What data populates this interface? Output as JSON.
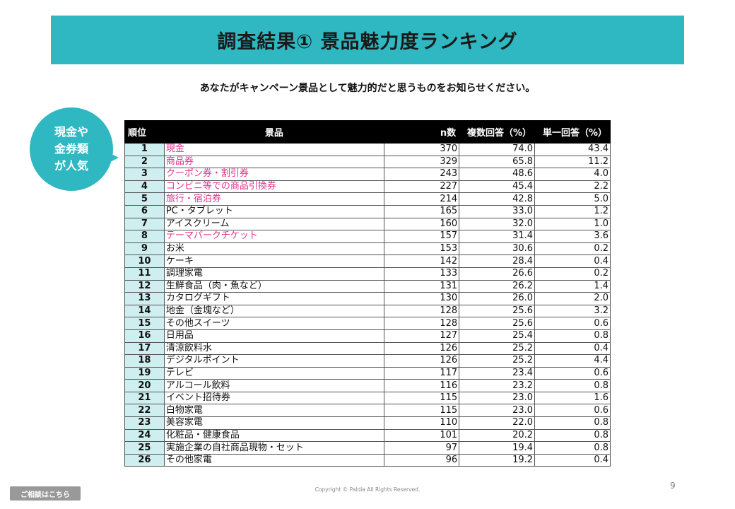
{
  "header": {
    "title": "調査結果① 景品魅力度ランキング"
  },
  "question": "あなたがキャンペーン景品として魅力的だと思うものをお知らせください。",
  "callout": {
    "lines": [
      "現金や",
      "金券類",
      "が人気"
    ],
    "color": "#2fb8c1"
  },
  "table": {
    "columns": [
      "順位",
      "景品",
      "n数",
      "複数回答（%）",
      "単一回答（%）"
    ],
    "highlight_color": "#e0338f",
    "rows": [
      {
        "rank": "1",
        "item": "現金",
        "n": "370",
        "multi": "74.0",
        "single": "43.4",
        "highlight": true
      },
      {
        "rank": "2",
        "item": "商品券",
        "n": "329",
        "multi": "65.8",
        "single": "11.2",
        "highlight": true
      },
      {
        "rank": "3",
        "item": "クーポン券・割引券",
        "n": "243",
        "multi": "48.6",
        "single": "4.0",
        "highlight": true
      },
      {
        "rank": "4",
        "item": "コンビニ等での商品引換券",
        "n": "227",
        "multi": "45.4",
        "single": "2.2",
        "highlight": true
      },
      {
        "rank": "5",
        "item": "旅行・宿泊券",
        "n": "214",
        "multi": "42.8",
        "single": "5.0",
        "highlight": true
      },
      {
        "rank": "6",
        "item": "PC・タブレット",
        "n": "165",
        "multi": "33.0",
        "single": "1.2",
        "highlight": false
      },
      {
        "rank": "7",
        "item": "アイスクリーム",
        "n": "160",
        "multi": "32.0",
        "single": "1.0",
        "highlight": false
      },
      {
        "rank": "8",
        "item": "テーマパークチケット",
        "n": "157",
        "multi": "31.4",
        "single": "3.6",
        "highlight": true
      },
      {
        "rank": "9",
        "item": "お米",
        "n": "153",
        "multi": "30.6",
        "single": "0.2",
        "highlight": false
      },
      {
        "rank": "10",
        "item": "ケーキ",
        "n": "142",
        "multi": "28.4",
        "single": "0.4",
        "highlight": false
      },
      {
        "rank": "11",
        "item": "調理家電",
        "n": "133",
        "multi": "26.6",
        "single": "0.2",
        "highlight": false
      },
      {
        "rank": "12",
        "item": "生鮮食品（肉・魚など）",
        "n": "131",
        "multi": "26.2",
        "single": "1.4",
        "highlight": false
      },
      {
        "rank": "13",
        "item": "カタログギフト",
        "n": "130",
        "multi": "26.0",
        "single": "2.0",
        "highlight": false
      },
      {
        "rank": "14",
        "item": "地金（金塊など）",
        "n": "128",
        "multi": "25.6",
        "single": "3.2",
        "highlight": false
      },
      {
        "rank": "15",
        "item": "その他スイーツ",
        "n": "128",
        "multi": "25.6",
        "single": "0.6",
        "highlight": false
      },
      {
        "rank": "16",
        "item": "日用品",
        "n": "127",
        "multi": "25.4",
        "single": "0.8",
        "highlight": false
      },
      {
        "rank": "17",
        "item": "清涼飲料水",
        "n": "126",
        "multi": "25.2",
        "single": "0.4",
        "highlight": false
      },
      {
        "rank": "18",
        "item": "デジタルポイント",
        "n": "126",
        "multi": "25.2",
        "single": "4.4",
        "highlight": false
      },
      {
        "rank": "19",
        "item": "テレビ",
        "n": "117",
        "multi": "23.4",
        "single": "0.6",
        "highlight": false
      },
      {
        "rank": "20",
        "item": "アルコール飲料",
        "n": "116",
        "multi": "23.2",
        "single": "0.8",
        "highlight": false
      },
      {
        "rank": "21",
        "item": "イベント招待券",
        "n": "115",
        "multi": "23.0",
        "single": "1.6",
        "highlight": false
      },
      {
        "rank": "22",
        "item": "白物家電",
        "n": "115",
        "multi": "23.0",
        "single": "0.6",
        "highlight": false
      },
      {
        "rank": "23",
        "item": "美容家電",
        "n": "110",
        "multi": "22.0",
        "single": "0.8",
        "highlight": false
      },
      {
        "rank": "24",
        "item": "化粧品・健康食品",
        "n": "101",
        "multi": "20.2",
        "single": "0.8",
        "highlight": false
      },
      {
        "rank": "25",
        "item": "実施企業の自社商品現物・セット",
        "n": "97",
        "multi": "19.4",
        "single": "0.8",
        "highlight": false
      },
      {
        "rank": "26",
        "item": "その他家電",
        "n": "96",
        "multi": "19.2",
        "single": "0.4",
        "highlight": false
      }
    ]
  },
  "footer": {
    "page_number": "9",
    "copyright": "Copyright © Paldia All Rights Reserved.",
    "consult_button": "ご相談はこちら"
  }
}
